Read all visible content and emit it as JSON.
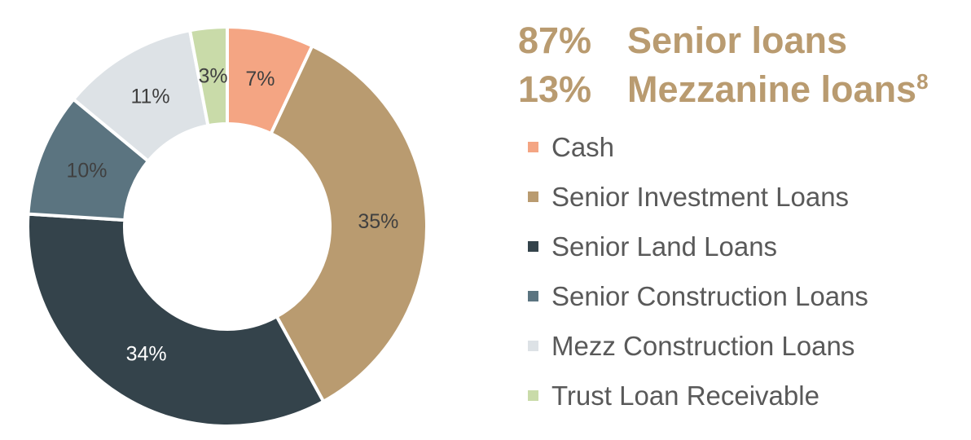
{
  "chart_data": {
    "type": "pie",
    "variant": "donut",
    "categories": [
      "Cash",
      "Senior Investment Loans",
      "Senior Land Loans",
      "Senior Construction Loans",
      "Mezz Construction Loans",
      "Trust Loan Receivable"
    ],
    "values": [
      7,
      35,
      34,
      10,
      11,
      3
    ],
    "data_labels": [
      "7%",
      "35%",
      "34%",
      "10%",
      "11%",
      "3%"
    ],
    "colors": [
      "#f4a583",
      "#b99b70",
      "#34434b",
      "#5b7480",
      "#dde2e6",
      "#c9dba9"
    ],
    "label_colors": [
      "#404040",
      "#404040",
      "#ffffff",
      "#404040",
      "#404040",
      "#404040"
    ],
    "legend_position": "right"
  },
  "summary": {
    "color": "#b99b70",
    "rows": [
      {
        "pct": "87%",
        "text": "Senior loans",
        "sup": ""
      },
      {
        "pct": "13%",
        "text": "Mezzanine loans",
        "sup": "8"
      }
    ]
  }
}
